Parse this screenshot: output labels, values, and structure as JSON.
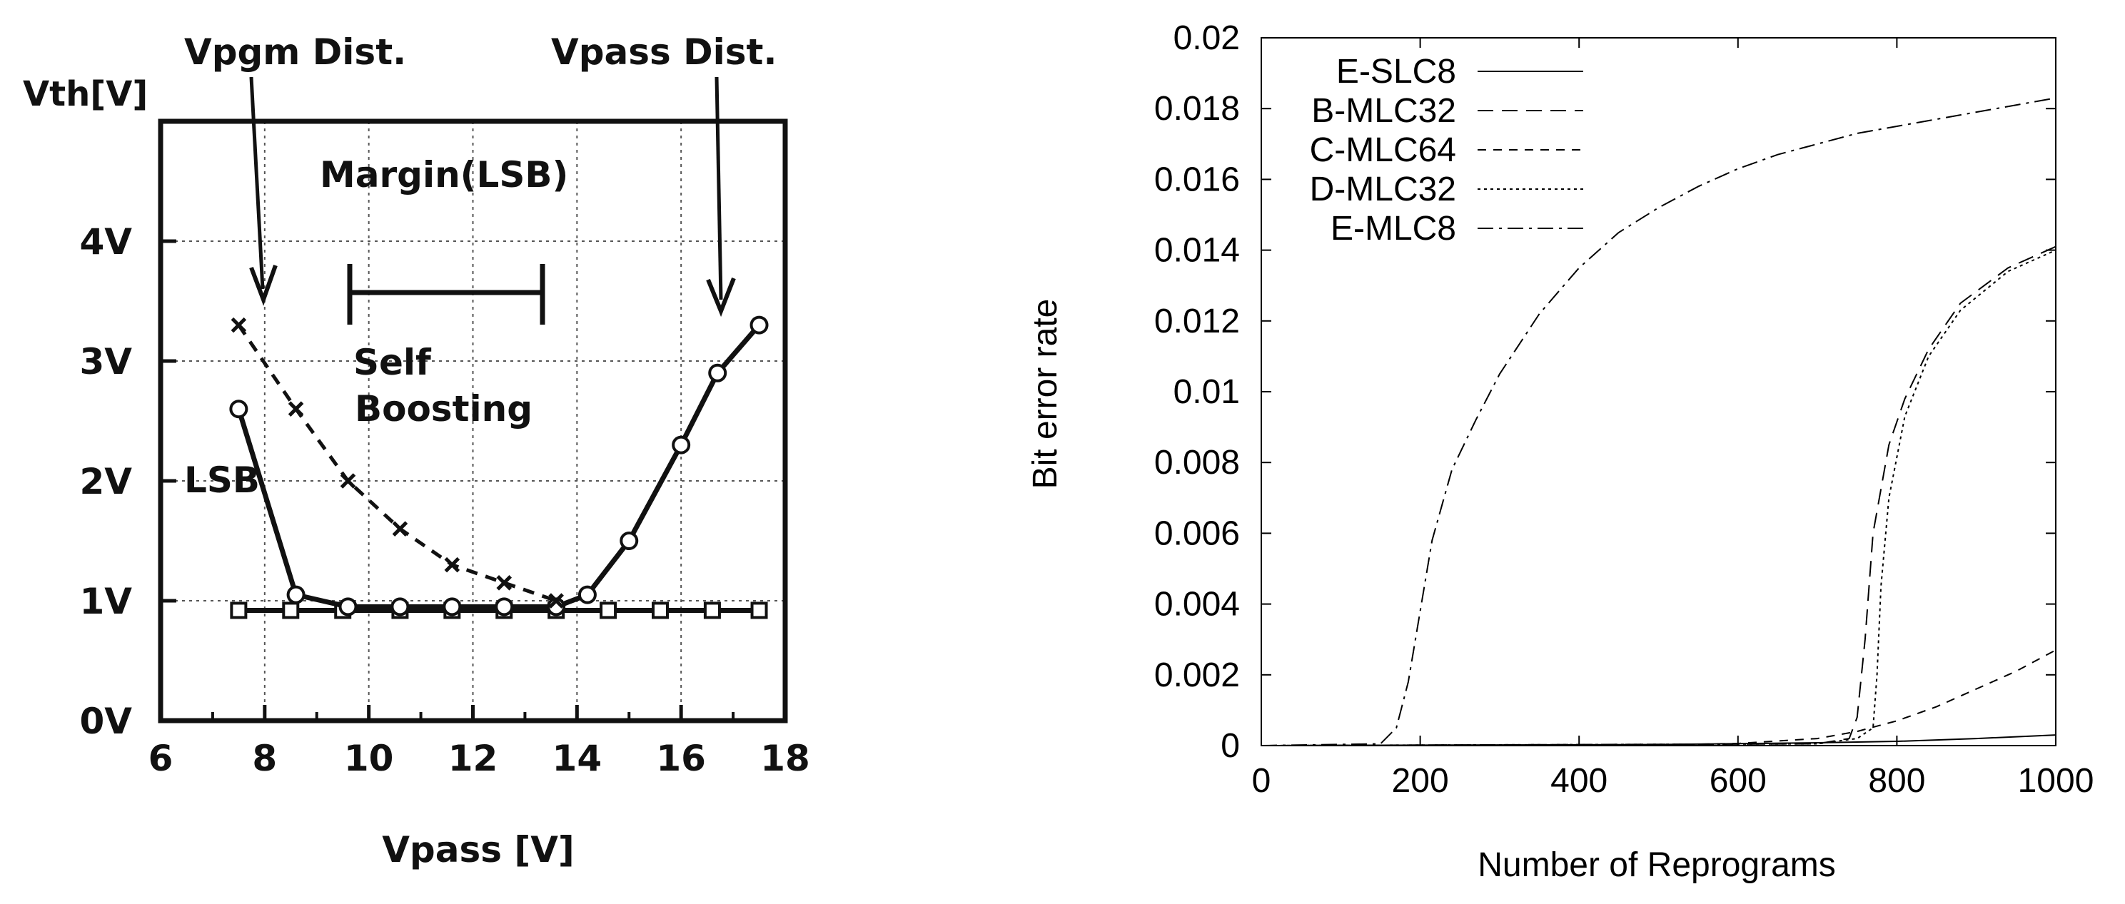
{
  "chart_data": [
    {
      "type": "line",
      "title": "",
      "xlabel": "Vpass [V]",
      "ylabel": "Vth[V]",
      "xlim": [
        6,
        18
      ],
      "ylim": [
        0,
        5
      ],
      "xticks": [
        "6",
        "8",
        "10",
        "12",
        "14",
        "16",
        "18"
      ],
      "yticks": [
        "0V",
        "1V",
        "2V",
        "3V",
        "4V"
      ],
      "grid": true,
      "legend": "none",
      "annotations": {
        "vpgm": "Vpgm Dist.",
        "vpass": "Vpass Dist.",
        "margin": "Margin(LSB)",
        "self": "Self",
        "boosting": "Boosting",
        "lsb": "LSB"
      },
      "series": [
        {
          "style": "solid",
          "marker": "square",
          "x": [
            7.5,
            8.5,
            9.5,
            10.6,
            11.6,
            12.6,
            13.6,
            14.6,
            15.6,
            16.6,
            17.5
          ],
          "y": [
            0.92,
            0.92,
            0.92,
            0.92,
            0.92,
            0.92,
            0.92,
            0.92,
            0.92,
            0.92,
            0.92
          ]
        },
        {
          "style": "solid",
          "marker": "circle",
          "x": [
            7.5,
            8.6,
            9.6,
            10.6,
            11.6,
            12.6,
            13.6,
            14.2,
            15.0,
            16.0,
            16.7,
            17.5
          ],
          "y": [
            2.6,
            1.05,
            0.95,
            0.95,
            0.95,
            0.95,
            0.95,
            1.05,
            1.5,
            2.3,
            2.9,
            3.3
          ]
        },
        {
          "style": "dashed",
          "marker": "x",
          "x": [
            7.5,
            8.6,
            9.6,
            10.6,
            11.6,
            12.6,
            13.6
          ],
          "y": [
            3.3,
            2.6,
            2.0,
            1.6,
            1.3,
            1.15,
            1.0
          ]
        }
      ]
    },
    {
      "type": "line",
      "title": "",
      "xlabel": "Number of Reprograms",
      "ylabel": "Bit error rate",
      "xlim": [
        0,
        1000
      ],
      "ylim": [
        0,
        0.02
      ],
      "xticks": [
        "0",
        "200",
        "400",
        "600",
        "800",
        "1000"
      ],
      "yticks": [
        "0",
        "0.002",
        "0.004",
        "0.006",
        "0.008",
        "0.01",
        "0.012",
        "0.014",
        "0.016",
        "0.018",
        "0.02"
      ],
      "grid": false,
      "legend": "top-left",
      "series": [
        {
          "name": "E-SLC8",
          "style": "solid",
          "x": [
            0,
            500,
            700,
            800,
            900,
            1000
          ],
          "y": [
            0,
            3e-05,
            8e-05,
            0.00012,
            0.0002,
            0.0003
          ]
        },
        {
          "name": "B-MLC32",
          "style": "dashed",
          "x": [
            0,
            700,
            740,
            750,
            760,
            770,
            790,
            810,
            840,
            880,
            940,
            1000
          ],
          "y": [
            0,
            5e-05,
            0.0002,
            0.0008,
            0.003,
            0.006,
            0.0085,
            0.0098,
            0.0112,
            0.0125,
            0.0135,
            0.0141
          ]
        },
        {
          "name": "C-MLC64",
          "style": "short-dashed",
          "x": [
            0,
            500,
            600,
            700,
            750,
            800,
            850,
            900,
            950,
            1000
          ],
          "y": [
            0,
            2e-05,
            6e-05,
            0.0002,
            0.0004,
            0.0007,
            0.0011,
            0.0016,
            0.0021,
            0.0027
          ]
        },
        {
          "name": "D-MLC32",
          "style": "dotted",
          "x": [
            0,
            700,
            750,
            770,
            775,
            780,
            790,
            810,
            840,
            880,
            940,
            1000
          ],
          "y": [
            0,
            5e-05,
            0.0002,
            0.0005,
            0.002,
            0.0045,
            0.007,
            0.0093,
            0.011,
            0.0123,
            0.0134,
            0.014
          ]
        },
        {
          "name": "E-MLC8",
          "style": "dash-dot",
          "x": [
            0,
            150,
            170,
            185,
            200,
            215,
            240,
            270,
            300,
            350,
            400,
            450,
            500,
            550,
            600,
            650,
            700,
            750,
            800,
            850,
            900,
            950,
            1000
          ],
          "y": [
            0,
            5e-05,
            0.0005,
            0.0018,
            0.0038,
            0.0058,
            0.0078,
            0.0092,
            0.0105,
            0.0122,
            0.0135,
            0.0145,
            0.0152,
            0.0158,
            0.0163,
            0.0167,
            0.017,
            0.0173,
            0.0175,
            0.0177,
            0.0179,
            0.0181,
            0.0183
          ]
        }
      ]
    }
  ]
}
